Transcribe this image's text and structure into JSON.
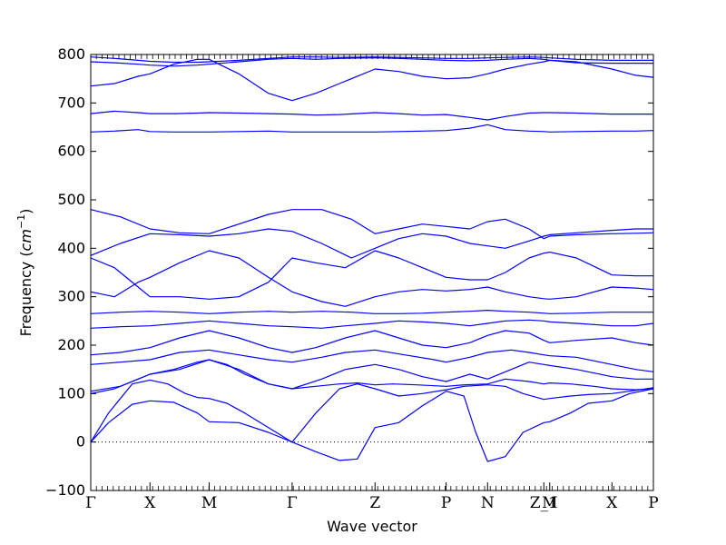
{
  "chart_data": {
    "type": "line",
    "title": "",
    "xlabel": "Wave vector",
    "ylabel": "Frequency (cm⁻¹)",
    "ylabel_prefix": "Frequency (",
    "ylabel_unit": "cm",
    "ylabel_exp": "−1",
    "ylabel_suffix": ")",
    "ylim": [
      -100,
      800
    ],
    "yticks": [
      -100,
      0,
      100,
      200,
      300,
      400,
      500,
      600,
      700,
      800
    ],
    "xlim": [
      0,
      9.5
    ],
    "kpoints": [
      {
        "label": "Γ",
        "x": 0
      },
      {
        "label": "X",
        "x": 1.0
      },
      {
        "label": "M",
        "x": 2.0
      },
      {
        "label": "Γ",
        "x": 3.4
      },
      {
        "label": "Z",
        "x": 4.8
      },
      {
        "label": "P",
        "x": 6.0
      },
      {
        "label": "N",
        "x": 6.7
      },
      {
        "label": "Z_1",
        "x": 7.65
      },
      {
        "label": "M",
        "x": 7.75
      },
      {
        "label": "X",
        "x": 8.8
      },
      {
        "label": "P",
        "x": 9.5
      }
    ],
    "zero_line": true,
    "line_color": "#0000ff",
    "series": [
      {
        "x": [
          0,
          0.3,
          0.7,
          1.0,
          1.4,
          1.8,
          2.0,
          2.5,
          3.0,
          3.4,
          3.8,
          4.2,
          4.5,
          4.8,
          5.2,
          5.6,
          6.0,
          6.3,
          6.5,
          6.7,
          7.0,
          7.3,
          7.65,
          7.75,
          8.1,
          8.4,
          8.8,
          9.1,
          9.5
        ],
        "y": [
          0,
          40,
          78,
          85,
          82,
          60,
          42,
          40,
          20,
          0,
          -20,
          -38,
          -35,
          30,
          40,
          75,
          105,
          95,
          20,
          -40,
          -30,
          20,
          40,
          42,
          60,
          80,
          85,
          100,
          110
        ]
      },
      {
        "x": [
          0,
          0.3,
          0.7,
          1.0,
          1.3,
          1.6,
          1.8,
          2.0,
          2.3,
          2.6,
          3.0,
          3.4,
          3.8,
          4.2,
          4.5,
          4.8,
          5.2,
          5.6,
          6.0,
          6.3,
          6.7,
          7.0,
          7.3,
          7.65,
          7.75,
          8.1,
          8.4,
          8.8,
          9.1,
          9.5
        ],
        "y": [
          0,
          60,
          120,
          128,
          120,
          100,
          92,
          90,
          80,
          60,
          30,
          0,
          60,
          110,
          120,
          110,
          95,
          100,
          108,
          115,
          118,
          115,
          100,
          88,
          90,
          95,
          98,
          100,
          105,
          112
        ]
      },
      {
        "x": [
          0,
          0.4,
          0.8,
          1.0,
          1.4,
          1.8,
          2.0,
          2.3,
          2.6,
          3.0,
          3.4,
          3.8,
          4.2,
          4.5,
          4.8,
          5.1,
          5.5,
          6.0,
          6.3,
          6.7,
          7.0,
          7.4,
          7.65,
          7.75,
          8.1,
          8.5,
          8.8,
          9.2,
          9.5
        ],
        "y": [
          100,
          110,
          130,
          140,
          150,
          165,
          170,
          160,
          140,
          120,
          110,
          115,
          120,
          122,
          118,
          120,
          118,
          115,
          118,
          120,
          130,
          125,
          120,
          122,
          120,
          115,
          110,
          108,
          110
        ]
      },
      {
        "x": [
          0,
          0.5,
          1.0,
          1.5,
          2.0,
          2.5,
          3.0,
          3.4,
          3.9,
          4.3,
          4.8,
          5.2,
          5.6,
          6.0,
          6.4,
          6.7,
          7.1,
          7.4,
          7.65,
          7.75,
          8.2,
          8.8,
          9.2,
          9.5
        ],
        "y": [
          105,
          115,
          140,
          150,
          170,
          150,
          120,
          110,
          130,
          150,
          160,
          150,
          135,
          125,
          140,
          130,
          150,
          165,
          160,
          158,
          150,
          135,
          130,
          130
        ]
      },
      {
        "x": [
          0,
          0.5,
          1.0,
          1.5,
          2.0,
          2.5,
          3.0,
          3.4,
          3.9,
          4.3,
          4.8,
          5.3,
          5.8,
          6.0,
          6.4,
          6.7,
          7.1,
          7.4,
          7.65,
          7.75,
          8.2,
          8.8,
          9.2,
          9.5
        ],
        "y": [
          160,
          165,
          170,
          185,
          190,
          180,
          170,
          165,
          175,
          185,
          190,
          180,
          170,
          165,
          175,
          185,
          190,
          185,
          180,
          178,
          175,
          160,
          150,
          145
        ]
      },
      {
        "x": [
          0,
          0.5,
          1.0,
          1.5,
          2.0,
          2.5,
          3.0,
          3.4,
          3.8,
          4.3,
          4.8,
          5.2,
          5.6,
          6.0,
          6.4,
          6.7,
          7.0,
          7.4,
          7.65,
          7.75,
          8.2,
          8.8,
          9.2,
          9.5
        ],
        "y": [
          180,
          185,
          195,
          215,
          230,
          215,
          195,
          185,
          195,
          215,
          230,
          215,
          200,
          195,
          205,
          220,
          230,
          225,
          210,
          205,
          210,
          215,
          205,
          200
        ]
      },
      {
        "x": [
          0,
          0.5,
          1.0,
          1.5,
          2.0,
          2.5,
          3.0,
          3.4,
          3.9,
          4.3,
          4.8,
          5.2,
          5.6,
          6.0,
          6.4,
          6.7,
          7.0,
          7.4,
          7.65,
          7.75,
          8.2,
          8.8,
          9.2,
          9.5
        ],
        "y": [
          235,
          238,
          240,
          245,
          250,
          245,
          240,
          238,
          235,
          240,
          245,
          250,
          248,
          245,
          240,
          245,
          250,
          252,
          250,
          248,
          245,
          240,
          240,
          245
        ]
      },
      {
        "x": [
          0,
          0.5,
          1.0,
          1.5,
          2.0,
          2.5,
          3.0,
          3.4,
          3.9,
          4.4,
          4.8,
          5.2,
          5.6,
          6.0,
          6.4,
          6.7,
          7.0,
          7.4,
          7.65,
          7.75,
          8.2,
          8.8,
          9.2,
          9.5
        ],
        "y": [
          265,
          268,
          270,
          268,
          265,
          268,
          270,
          268,
          270,
          268,
          265,
          265,
          266,
          268,
          270,
          272,
          270,
          268,
          266,
          265,
          266,
          268,
          268,
          268
        ]
      },
      {
        "x": [
          0,
          0.4,
          0.8,
          1.0,
          1.5,
          2.0,
          2.5,
          3.0,
          3.4,
          3.9,
          4.3,
          4.8,
          5.2,
          5.6,
          6.0,
          6.4,
          6.7,
          7.0,
          7.4,
          7.65,
          7.75,
          8.2,
          8.8,
          9.2,
          9.5
        ],
        "y": [
          310,
          300,
          330,
          340,
          370,
          395,
          380,
          340,
          310,
          290,
          280,
          300,
          310,
          315,
          312,
          315,
          320,
          310,
          300,
          296,
          295,
          300,
          320,
          318,
          315
        ]
      },
      {
        "x": [
          0,
          0.4,
          0.8,
          1.0,
          1.5,
          2.0,
          2.5,
          3.0,
          3.4,
          3.8,
          4.3,
          4.8,
          5.2,
          5.6,
          6.0,
          6.4,
          6.7,
          7.0,
          7.4,
          7.65,
          7.75,
          8.2,
          8.8,
          9.2,
          9.5
        ],
        "y": [
          380,
          360,
          320,
          300,
          300,
          295,
          300,
          330,
          380,
          370,
          360,
          395,
          380,
          360,
          340,
          335,
          335,
          350,
          380,
          390,
          392,
          380,
          345,
          343,
          343
        ]
      },
      {
        "x": [
          0,
          0.5,
          1.0,
          1.5,
          2.0,
          2.5,
          3.0,
          3.4,
          3.9,
          4.4,
          4.8,
          5.2,
          5.6,
          6.0,
          6.4,
          6.7,
          7.0,
          7.4,
          7.65,
          7.75,
          8.2,
          8.8,
          9.2,
          9.5
        ],
        "y": [
          385,
          410,
          430,
          428,
          425,
          430,
          440,
          435,
          410,
          380,
          400,
          420,
          430,
          425,
          410,
          405,
          400,
          415,
          425,
          428,
          432,
          437,
          440,
          440
        ]
      },
      {
        "x": [
          0,
          0.5,
          1.0,
          1.5,
          2.0,
          2.5,
          3.0,
          3.4,
          3.9,
          4.4,
          4.8,
          5.2,
          5.6,
          6.0,
          6.4,
          6.7,
          7.0,
          7.4,
          7.65,
          7.75,
          8.2,
          8.8,
          9.2,
          9.5
        ],
        "y": [
          480,
          465,
          440,
          432,
          430,
          450,
          470,
          480,
          480,
          460,
          430,
          440,
          450,
          445,
          440,
          455,
          460,
          440,
          420,
          425,
          428,
          430,
          431,
          432
        ]
      },
      {
        "x": [
          0,
          0.4,
          0.8,
          1.0,
          1.4,
          1.8,
          2.0,
          2.5,
          3.0,
          3.4,
          3.8,
          4.2,
          4.8,
          5.2,
          5.6,
          6.0,
          6.4,
          6.7,
          7.0,
          7.4,
          7.65,
          7.75,
          8.2,
          8.8,
          9.2,
          9.5
        ],
        "y": [
          640,
          642,
          645,
          641,
          640,
          640,
          640,
          641,
          642,
          640,
          640,
          640,
          640,
          641,
          642,
          643,
          648,
          655,
          645,
          642,
          641,
          640,
          641,
          642,
          642,
          643
        ]
      },
      {
        "x": [
          0,
          0.4,
          0.8,
          1.0,
          1.4,
          1.8,
          2.0,
          2.5,
          3.0,
          3.4,
          3.8,
          4.2,
          4.8,
          5.2,
          5.6,
          6.0,
          6.4,
          6.7,
          7.0,
          7.4,
          7.65,
          7.75,
          8.2,
          8.8,
          9.2,
          9.5
        ],
        "y": [
          678,
          683,
          680,
          678,
          678,
          679,
          680,
          679,
          678,
          677,
          675,
          676,
          680,
          678,
          675,
          676,
          670,
          665,
          672,
          679,
          680,
          680,
          679,
          677,
          677,
          677
        ]
      },
      {
        "x": [
          0,
          0.4,
          0.8,
          1.0,
          1.4,
          1.8,
          2.0,
          2.5,
          3.0,
          3.4,
          3.8,
          4.2,
          4.8,
          5.2,
          5.6,
          6.0,
          6.4,
          6.7,
          7.0,
          7.4,
          7.65,
          7.75,
          8.2,
          8.8,
          9.2,
          9.5
        ],
        "y": [
          735,
          740,
          755,
          760,
          780,
          790,
          790,
          760,
          720,
          705,
          720,
          740,
          770,
          765,
          755,
          750,
          752,
          760,
          770,
          780,
          785,
          788,
          785,
          770,
          757,
          753
        ]
      },
      {
        "x": [
          0,
          0.4,
          0.8,
          1.0,
          1.4,
          1.8,
          2.0,
          2.5,
          3.0,
          3.4,
          3.8,
          4.2,
          4.8,
          5.2,
          5.6,
          6.0,
          6.4,
          6.7,
          7.0,
          7.4,
          7.65,
          7.75,
          8.2,
          8.8,
          9.2,
          9.5
        ],
        "y": [
          785,
          783,
          780,
          778,
          776,
          778,
          780,
          785,
          790,
          792,
          790,
          792,
          793,
          792,
          790,
          788,
          787,
          788,
          790,
          792,
          790,
          788,
          783,
          782,
          782,
          782
        ]
      },
      {
        "x": [
          0,
          0.4,
          0.8,
          1.0,
          1.4,
          1.8,
          2.0,
          2.5,
          3.0,
          3.4,
          3.8,
          4.2,
          4.8,
          5.2,
          5.6,
          6.0,
          6.4,
          6.7,
          7.0,
          7.4,
          7.65,
          7.75,
          8.2,
          8.8,
          9.2,
          9.5
        ],
        "y": [
          795,
          792,
          788,
          786,
          784,
          784,
          785,
          788,
          792,
          795,
          795,
          794,
          795,
          794,
          793,
          792,
          792,
          793,
          794,
          795,
          794,
          793,
          790,
          788,
          788,
          788
        ]
      }
    ]
  }
}
